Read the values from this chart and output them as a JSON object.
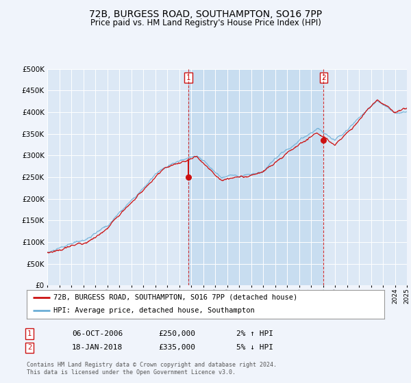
{
  "title": "72B, BURGESS ROAD, SOUTHAMPTON, SO16 7PP",
  "subtitle": "Price paid vs. HM Land Registry's House Price Index (HPI)",
  "bg_color": "#f0f4fb",
  "plot_bg_color": "#dce8f5",
  "highlight_color": "#c8ddf0",
  "grid_color": "#ffffff",
  "hpi_color": "#6baed6",
  "price_color": "#cc1111",
  "marker1_year": 2006.77,
  "marker2_year": 2018.05,
  "marker1_price": 250000,
  "marker2_price": 335000,
  "annotation1": "06-OCT-2006",
  "annotation1_price": "£250,000",
  "annotation1_hpi": "2% ↑ HPI",
  "annotation2": "18-JAN-2018",
  "annotation2_price": "£335,000",
  "annotation2_hpi": "5% ↓ HPI",
  "legend1": "72B, BURGESS ROAD, SOUTHAMPTON, SO16 7PP (detached house)",
  "legend2": "HPI: Average price, detached house, Southampton",
  "footer1": "Contains HM Land Registry data © Crown copyright and database right 2024.",
  "footer2": "This data is licensed under the Open Government Licence v3.0.",
  "xmin": 1995,
  "xmax": 2025,
  "ymin": 0,
  "ymax": 500000,
  "yticks": [
    0,
    50000,
    100000,
    150000,
    200000,
    250000,
    300000,
    350000,
    400000,
    450000,
    500000
  ]
}
